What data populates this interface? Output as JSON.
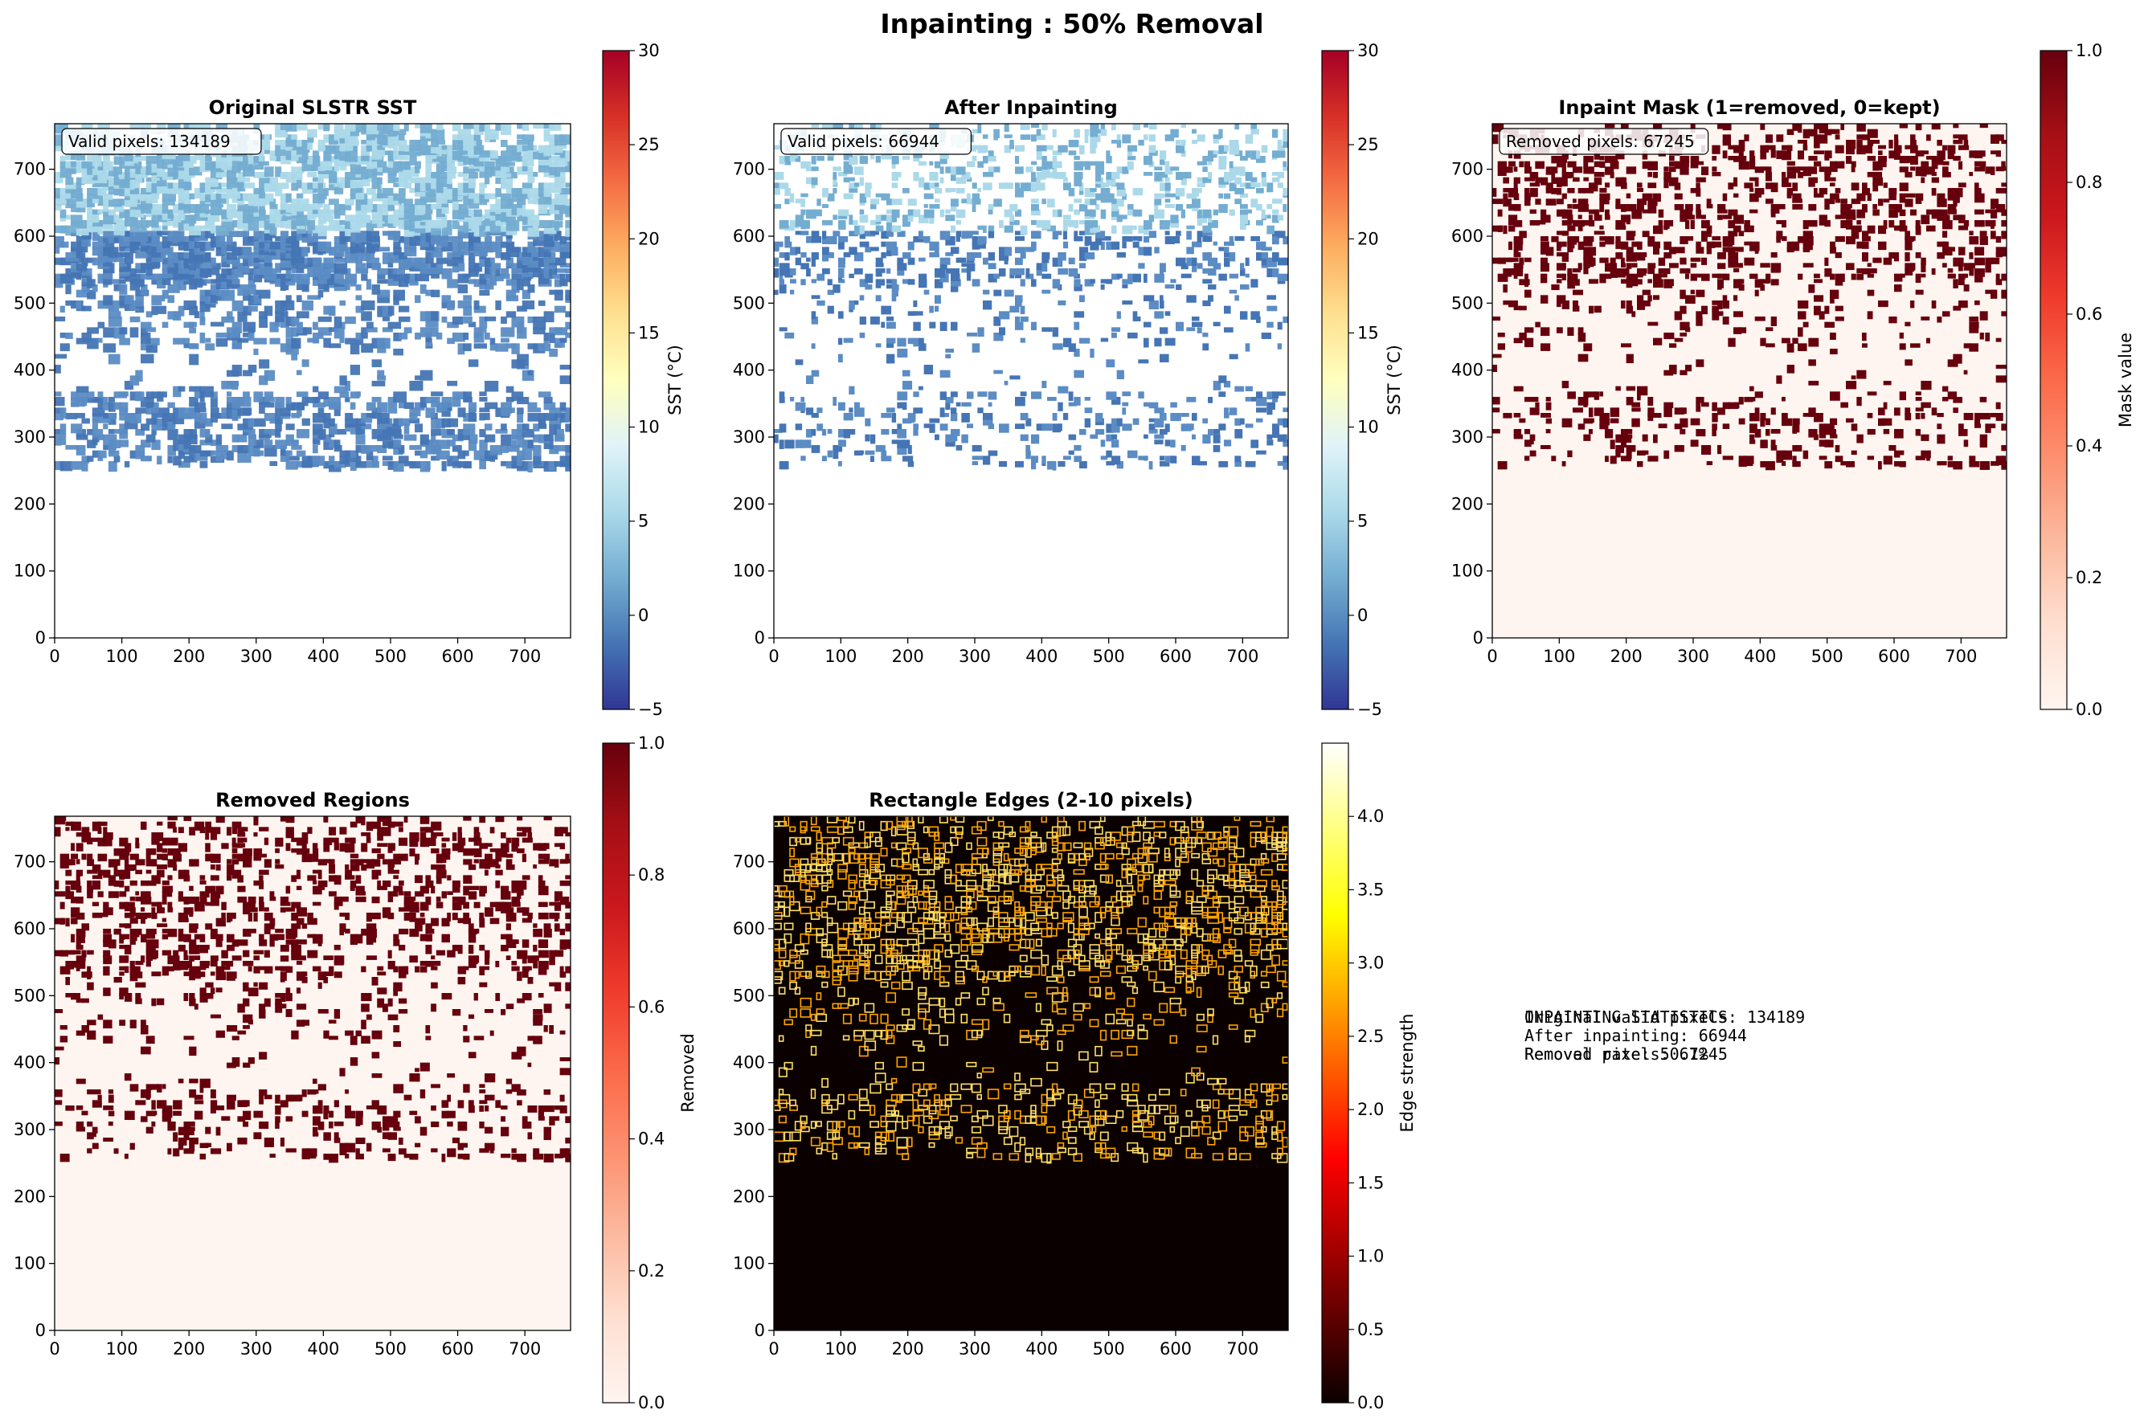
{
  "figure": {
    "title": "Inpainting : 50% Removal"
  },
  "chart_data": [
    {
      "id": "original",
      "type": "heatmap",
      "title": "Original SLSTR SST",
      "annotation": "Valid pixels: 134189",
      "xlim": [
        0,
        768
      ],
      "ylim": [
        0,
        768
      ],
      "xticks": [
        0,
        100,
        200,
        300,
        400,
        500,
        600,
        700
      ],
      "yticks": [
        0,
        100,
        200,
        300,
        400,
        500,
        600,
        700
      ],
      "colorbar": {
        "label": "SST (°C)",
        "cmap": "RdYlBu_r",
        "range": [
          -5,
          30
        ],
        "ticks": [
          -5,
          0,
          5,
          10,
          15,
          20,
          25,
          30
        ]
      },
      "grid": false
    },
    {
      "id": "after",
      "type": "heatmap",
      "title": "After Inpainting",
      "annotation": "Valid pixels: 66944",
      "xlim": [
        0,
        768
      ],
      "ylim": [
        0,
        768
      ],
      "xticks": [
        0,
        100,
        200,
        300,
        400,
        500,
        600,
        700
      ],
      "yticks": [
        0,
        100,
        200,
        300,
        400,
        500,
        600,
        700
      ],
      "colorbar": {
        "label": "SST (°C)",
        "cmap": "RdYlBu_r",
        "range": [
          -5,
          30
        ],
        "ticks": [
          -5,
          0,
          5,
          10,
          15,
          20,
          25,
          30
        ]
      },
      "grid": false
    },
    {
      "id": "mask",
      "type": "heatmap",
      "title": "Inpaint Mask (1=removed, 0=kept)",
      "annotation": "Removed pixels: 67245",
      "xlim": [
        0,
        768
      ],
      "ylim": [
        0,
        768
      ],
      "xticks": [
        0,
        100,
        200,
        300,
        400,
        500,
        600,
        700
      ],
      "yticks": [
        0,
        100,
        200,
        300,
        400,
        500,
        600,
        700
      ],
      "colorbar": {
        "label": "Mask value",
        "cmap": "Reds",
        "range": [
          0,
          1
        ],
        "ticks": [
          "0.0",
          "0.2",
          "0.4",
          "0.6",
          "0.8",
          "1.0"
        ]
      },
      "grid": false
    },
    {
      "id": "removed",
      "type": "heatmap",
      "title": "Removed Regions",
      "annotation": "",
      "xlim": [
        0,
        768
      ],
      "ylim": [
        0,
        768
      ],
      "xticks": [
        0,
        100,
        200,
        300,
        400,
        500,
        600,
        700
      ],
      "yticks": [
        0,
        100,
        200,
        300,
        400,
        500,
        600,
        700
      ],
      "colorbar": {
        "label": "Removed",
        "cmap": "Reds",
        "range": [
          0,
          1
        ],
        "ticks": [
          "0.0",
          "0.2",
          "0.4",
          "0.6",
          "0.8",
          "1.0"
        ]
      },
      "grid": false
    },
    {
      "id": "edges",
      "type": "heatmap",
      "title": "Rectangle Edges (2-10 pixels)",
      "annotation": "",
      "xlim": [
        0,
        768
      ],
      "ylim": [
        0,
        768
      ],
      "xticks": [
        0,
        100,
        200,
        300,
        400,
        500,
        600,
        700
      ],
      "yticks": [
        0,
        100,
        200,
        300,
        400,
        500,
        600,
        700
      ],
      "colorbar": {
        "label": "Edge strength",
        "cmap": "hot",
        "range": [
          0,
          4.5
        ],
        "ticks": [
          "0.0",
          "0.5",
          "1.0",
          "1.5",
          "2.0",
          "2.5",
          "3.0",
          "3.5",
          "4.0"
        ]
      },
      "grid": false
    }
  ],
  "stats": {
    "lines": [
      "INPAINTING STATISTICS",
      "",
      "Original valid pixels: 134189",
      "After inpainting: 66944",
      "Removed pixels: 67245",
      "",
      "Removal rate: 50.1%"
    ]
  }
}
